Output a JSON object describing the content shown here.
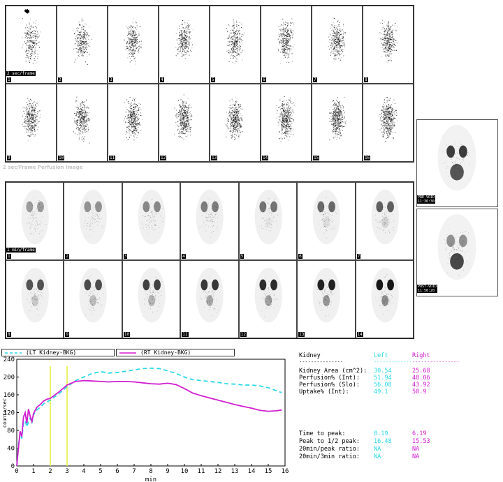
{
  "study": {
    "grid1_caption": "2 sec/Frame Perfusion Image",
    "grid1_rate_label": "2 sec/frame",
    "grid2_rate_label": "1 min/frame",
    "grid1_frames": [
      "1",
      "2",
      "3",
      "4",
      "5",
      "6",
      "7",
      "8",
      "9",
      "10",
      "11",
      "12",
      "13",
      "14",
      "15",
      "16"
    ],
    "grid2_frames": [
      "1",
      "2",
      "3",
      "4",
      "5",
      "6",
      "7",
      "8",
      "9",
      "10",
      "11",
      "12",
      "13",
      "14"
    ],
    "side_top_label": "PRE-VOID\n11:36:30",
    "side_bottom_label": "POST-VOID\n11:50:20"
  },
  "legend": {
    "lt_label": "(LT Kidney-BKG)",
    "rt_label": "(RT Kidney-BKG)"
  },
  "colors": {
    "left_kidney": "#29d8e6",
    "right_kidney": "#d11ed1",
    "marker": "#e6ef3a"
  },
  "chart_data": {
    "type": "line",
    "xlabel": "min",
    "ylabel": "counts/sec",
    "xlim": [
      0,
      16
    ],
    "ylim": [
      0,
      240
    ],
    "xticks": [
      "0",
      "1",
      "2",
      "3",
      "4",
      "5",
      "6",
      "7",
      "8",
      "9",
      "10",
      "11",
      "12",
      "13",
      "14",
      "15",
      "16"
    ],
    "yticks": [
      "0",
      "40",
      "80",
      "120",
      "160",
      "200",
      "240"
    ],
    "markers": [
      2,
      3
    ],
    "series": [
      {
        "name": "(LT Kidney-BKG)",
        "style": "dashed",
        "color": "#29d8e6",
        "x": [
          0,
          0.1,
          0.2,
          0.3,
          0.4,
          0.5,
          0.6,
          0.7,
          0.8,
          0.9,
          1.0,
          1.2,
          1.4,
          1.6,
          1.8,
          2.0,
          2.5,
          3.0,
          3.5,
          4.0,
          4.5,
          5.0,
          5.5,
          6.0,
          6.5,
          7.0,
          7.5,
          8.0,
          8.5,
          9.0,
          9.5,
          10.0,
          10.5,
          11.0,
          11.5,
          12.0,
          12.5,
          13.0,
          13.5,
          14.0,
          14.5,
          15.0,
          15.5,
          15.8
        ],
        "y": [
          0,
          48,
          72,
          62,
          95,
          102,
          88,
          100,
          108,
          96,
          115,
          126,
          132,
          140,
          144,
          148,
          162,
          178,
          192,
          200,
          208,
          212,
          209,
          210,
          213,
          216,
          219,
          220,
          219,
          214,
          208,
          200,
          194,
          192,
          190,
          188,
          185,
          184,
          182,
          182,
          180,
          176,
          169,
          165
        ]
      },
      {
        "name": "(RT Kidney-BKG)",
        "style": "solid",
        "color": "#d11ed1",
        "x": [
          0,
          0.1,
          0.2,
          0.3,
          0.4,
          0.5,
          0.6,
          0.7,
          0.8,
          0.9,
          1.0,
          1.2,
          1.4,
          1.6,
          1.8,
          2.0,
          2.5,
          3.0,
          3.5,
          4.0,
          4.5,
          5.0,
          5.5,
          6.0,
          6.5,
          7.0,
          7.5,
          8.0,
          8.5,
          9.0,
          9.5,
          10.0,
          10.5,
          11.0,
          11.5,
          12.0,
          12.5,
          13.0,
          13.5,
          14.0,
          14.5,
          15.0,
          15.5,
          15.8
        ],
        "y": [
          0,
          40,
          78,
          66,
          110,
          120,
          96,
          128,
          112,
          100,
          118,
          132,
          138,
          146,
          150,
          152,
          166,
          182,
          190,
          192,
          191,
          190,
          189,
          190,
          190,
          189,
          187,
          185,
          184,
          186,
          183,
          174,
          164,
          158,
          153,
          148,
          143,
          138,
          134,
          130,
          125,
          123,
          124,
          126
        ]
      }
    ]
  },
  "stats": {
    "title": "Kidney",
    "col_left": "Left",
    "col_right": "Right",
    "dash_label": "---------------",
    "dash_left": "------------------",
    "dash_right": "----------------",
    "rows1": [
      {
        "label": "Kidney Area (cm^2):",
        "left": "30.54",
        "right": "25.68"
      },
      {
        "label": "Perfusion% (Int):",
        "left": "51.94",
        "right": "48.06"
      },
      {
        "label": "Perfusion% (Slo):",
        "left": "56.08",
        "right": "43.92"
      },
      {
        "label": "Uptake% (Int):",
        "left": "49.1",
        "right": "50.9"
      }
    ],
    "rows2": [
      {
        "label": "Time to peak:",
        "left": "8.19",
        "right": "6.19"
      },
      {
        "label": "Peak to 1/2 peak:",
        "left": "16.48",
        "right": "15.53"
      },
      {
        "label": "20min/peak ratio:",
        "left": "NA",
        "right": "NA"
      },
      {
        "label": "20min/3min ratio:",
        "left": "NA",
        "right": "NA"
      }
    ]
  }
}
